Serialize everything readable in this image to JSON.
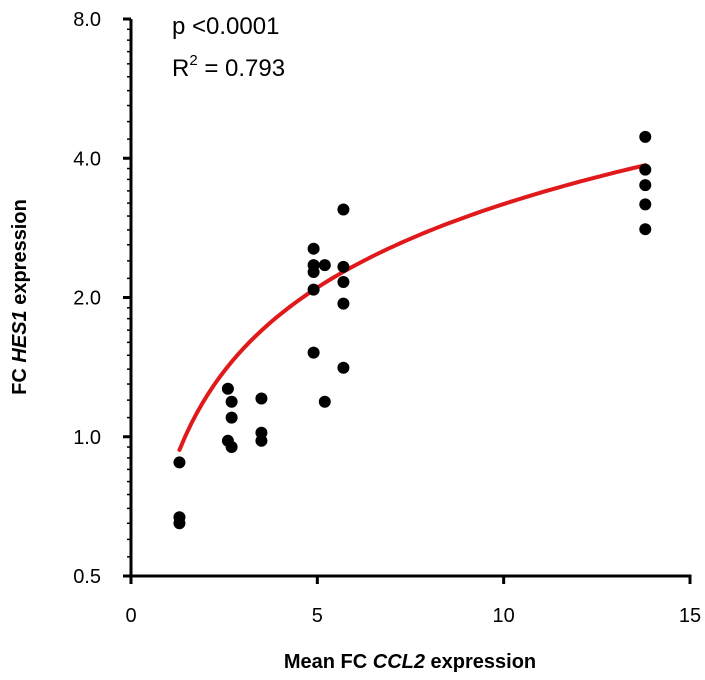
{
  "chart_data": {
    "type": "scatter",
    "xlabel": {
      "prefix": "Mean FC ",
      "gene": "CCL2",
      "suffix": " expression"
    },
    "ylabel": {
      "prefix": "FC ",
      "gene": "HES1",
      "suffix": " expression"
    },
    "xlim": [
      0,
      15
    ],
    "ylim": [
      0.5,
      8.0
    ],
    "yscale": "log2",
    "x_ticks": [
      0,
      5,
      10,
      15
    ],
    "y_ticks": [
      0.5,
      1.0,
      2.0,
      4.0,
      8.0
    ],
    "x_tick_labels": [
      "0",
      "5",
      "10",
      "15"
    ],
    "y_tick_labels": [
      "0.5",
      "1.0",
      "2.0",
      "4.0",
      "8.0"
    ],
    "annotations": {
      "p_value": "p <0.0001",
      "r2_label": "R",
      "r2_sup": "2",
      "r2_value": " = 0.793"
    },
    "colors": {
      "points": "#000000",
      "fit": "#e0191b",
      "axis": "#000000"
    },
    "points": [
      {
        "x": 1.3,
        "y": 0.88
      },
      {
        "x": 1.3,
        "y": 0.67
      },
      {
        "x": 1.3,
        "y": 0.65
      },
      {
        "x": 2.6,
        "y": 1.27
      },
      {
        "x": 2.7,
        "y": 1.19
      },
      {
        "x": 2.7,
        "y": 1.1
      },
      {
        "x": 2.6,
        "y": 0.98
      },
      {
        "x": 2.7,
        "y": 0.95
      },
      {
        "x": 3.5,
        "y": 1.21
      },
      {
        "x": 3.5,
        "y": 1.02
      },
      {
        "x": 3.5,
        "y": 0.98
      },
      {
        "x": 4.9,
        "y": 2.55
      },
      {
        "x": 4.9,
        "y": 2.35
      },
      {
        "x": 4.9,
        "y": 2.27
      },
      {
        "x": 4.9,
        "y": 2.08
      },
      {
        "x": 4.9,
        "y": 1.52
      },
      {
        "x": 5.2,
        "y": 2.35
      },
      {
        "x": 5.2,
        "y": 1.19
      },
      {
        "x": 5.7,
        "y": 3.1
      },
      {
        "x": 5.7,
        "y": 2.33
      },
      {
        "x": 5.7,
        "y": 2.16
      },
      {
        "x": 5.7,
        "y": 1.94
      },
      {
        "x": 5.7,
        "y": 1.41
      },
      {
        "x": 13.8,
        "y": 4.45
      },
      {
        "x": 13.8,
        "y": 3.78
      },
      {
        "x": 13.8,
        "y": 3.5
      },
      {
        "x": 13.8,
        "y": 3.18
      },
      {
        "x": 13.8,
        "y": 2.81
      }
    ],
    "fit": {
      "type": "power",
      "x_range": [
        1.3,
        13.8
      ],
      "a": 0.8,
      "b": 0.6
    }
  }
}
